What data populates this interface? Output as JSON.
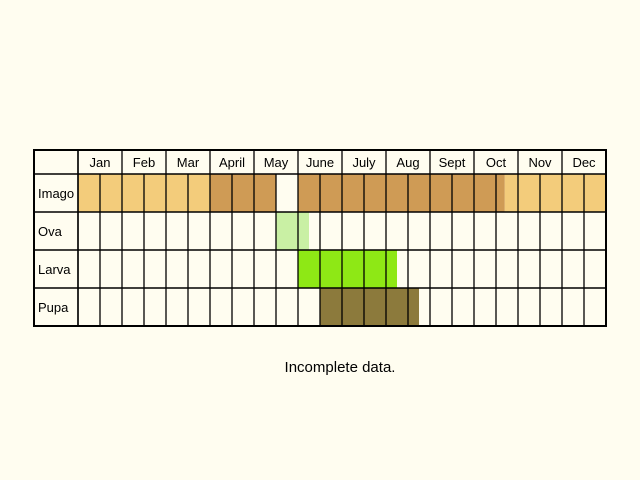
{
  "chart_data": {
    "type": "table",
    "months": [
      "Jan",
      "Feb",
      "Mar",
      "April",
      "May",
      "June",
      "July",
      "Aug",
      "Sept",
      "Oct",
      "Nov",
      "Dec"
    ],
    "rows": [
      {
        "label": "Imago",
        "spans": [
          {
            "start": 1.0,
            "end": 4.0,
            "level": "light"
          },
          {
            "start": 4.0,
            "end": 5.5,
            "level": "dark"
          },
          {
            "start": 6.0,
            "end": 10.7,
            "level": "dark"
          },
          {
            "start": 10.7,
            "end": 13.0,
            "level": "light"
          }
        ]
      },
      {
        "label": "Ova",
        "spans": [
          {
            "start": 5.5,
            "end": 6.25,
            "level": "main"
          }
        ]
      },
      {
        "label": "Larva",
        "spans": [
          {
            "start": 6.0,
            "end": 8.25,
            "level": "main"
          }
        ]
      },
      {
        "label": "Pupa",
        "spans": [
          {
            "start": 6.5,
            "end": 8.75,
            "level": "main"
          }
        ]
      }
    ],
    "colors": {
      "Imago": {
        "light": "#f3cc7b",
        "dark": "#cf9b55"
      },
      "Ova": {
        "main": "#c9f0a4"
      },
      "Larva": {
        "main": "#8ee815"
      },
      "Pupa": {
        "main": "#8c7a3c"
      }
    },
    "note": "Incomplete data."
  }
}
